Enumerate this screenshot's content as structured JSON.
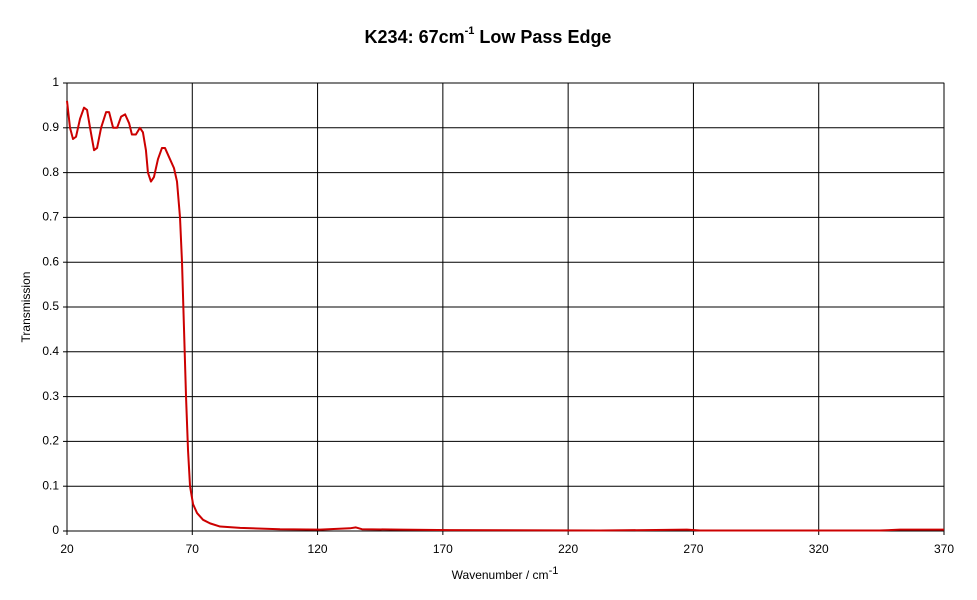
{
  "chart_data": {
    "type": "line",
    "title": "K234: 67cm",
    "title_superscript": "-1",
    "title_end": " Low Pass Edge",
    "xlabel": "Wavenumber / cm",
    "xlabel_superscript": "-1",
    "ylabel": "Transmission",
    "xlim": [
      20,
      370
    ],
    "xticks": [
      20,
      70,
      120,
      170,
      220,
      270,
      320,
      370
    ],
    "ylim": [
      0,
      1
    ],
    "yticks": [
      0,
      0.1,
      0.2,
      0.3,
      0.4,
      0.5,
      0.6,
      0.7,
      0.8,
      0.9,
      1
    ],
    "grid": true,
    "x": [
      20,
      21.2,
      22.4,
      23.6,
      25.2,
      26.8,
      28.0,
      29.2,
      30.8,
      32.0,
      33.6,
      35.6,
      36.8,
      38.4,
      40.0,
      41.6,
      43.2,
      44.8,
      45.9,
      47.5,
      49.1,
      50.3,
      51.5,
      52.3,
      53.5,
      54.7,
      56.3,
      57.9,
      59.1,
      60.7,
      62.7,
      63.9,
      65.1,
      65.9,
      66.7,
      67.5,
      68.3,
      69.1,
      70.3,
      71.9,
      74.3,
      77.1,
      81.1,
      89.1,
      105,
      121,
      132.9,
      135.3,
      137.7,
      152.9,
      172.9,
      232.7,
      267.4,
      272.6,
      344.4,
      352.4,
      370
    ],
    "series": [
      {
        "color": "#cc0000",
        "values": [
          0.96,
          0.9,
          0.875,
          0.88,
          0.92,
          0.945,
          0.94,
          0.9,
          0.85,
          0.855,
          0.9,
          0.935,
          0.935,
          0.9,
          0.9,
          0.925,
          0.93,
          0.91,
          0.885,
          0.885,
          0.9,
          0.89,
          0.85,
          0.8,
          0.78,
          0.79,
          0.83,
          0.855,
          0.855,
          0.835,
          0.81,
          0.78,
          0.7,
          0.6,
          0.45,
          0.3,
          0.18,
          0.1,
          0.06,
          0.04,
          0.025,
          0.017,
          0.01,
          0.007,
          0.004,
          0.003,
          0.006,
          0.008,
          0.004,
          0.003,
          0.002,
          0.001,
          0.003,
          0.001,
          0.001,
          0.003,
          0.003
        ]
      }
    ]
  }
}
